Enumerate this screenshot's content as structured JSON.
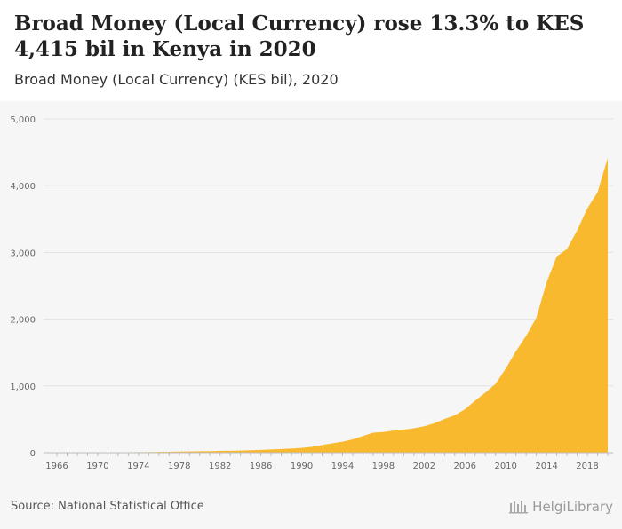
{
  "title": "Broad Money (Local Currency) rose 13.3% to KES 4,415 bil in Kenya in 2020",
  "subtitle": "Broad Money (Local Currency) (KES bil), 2020",
  "source": "Source: National Statistical Office",
  "brand": "HelgiLibrary",
  "chart_data": {
    "type": "area",
    "color": "#f9b92e",
    "title": "Broad Money (Local Currency) rose 13.3% to KES 4,415 bil in Kenya in 2020",
    "subtitle": "Broad Money (Local Currency) (KES bil), 2020",
    "xlabel": "",
    "ylabel": "",
    "ylim": [
      0,
      5000
    ],
    "yticks": [
      0,
      1000,
      2000,
      3000,
      4000,
      5000
    ],
    "ytick_labels": [
      "0",
      "1,000",
      "2,000",
      "3,000",
      "4,000",
      "5,000"
    ],
    "xticks": [
      1966,
      1970,
      1974,
      1978,
      1982,
      1986,
      1990,
      1994,
      1998,
      2002,
      2006,
      2010,
      2014,
      2018
    ],
    "grid": true,
    "legend": "none",
    "x": [
      1966,
      1967,
      1968,
      1969,
      1970,
      1971,
      1972,
      1973,
      1974,
      1975,
      1976,
      1977,
      1978,
      1979,
      1980,
      1981,
      1982,
      1983,
      1984,
      1985,
      1986,
      1987,
      1988,
      1989,
      1990,
      1991,
      1992,
      1993,
      1994,
      1995,
      1996,
      1997,
      1998,
      1999,
      2000,
      2001,
      2002,
      2003,
      2004,
      2005,
      2006,
      2007,
      2008,
      2009,
      2010,
      2011,
      2012,
      2013,
      2014,
      2015,
      2016,
      2017,
      2018,
      2019,
      2020
    ],
    "values": [
      2,
      2,
      3,
      3,
      4,
      5,
      6,
      7,
      8,
      9,
      11,
      14,
      17,
      19,
      21,
      23,
      26,
      29,
      32,
      36,
      42,
      48,
      55,
      62,
      72,
      88,
      115,
      140,
      165,
      200,
      250,
      300,
      310,
      330,
      345,
      365,
      395,
      440,
      505,
      560,
      650,
      780,
      900,
      1030,
      1260,
      1520,
      1750,
      2020,
      2550,
      2940,
      3050,
      3330,
      3660,
      3900,
      4415
    ]
  }
}
